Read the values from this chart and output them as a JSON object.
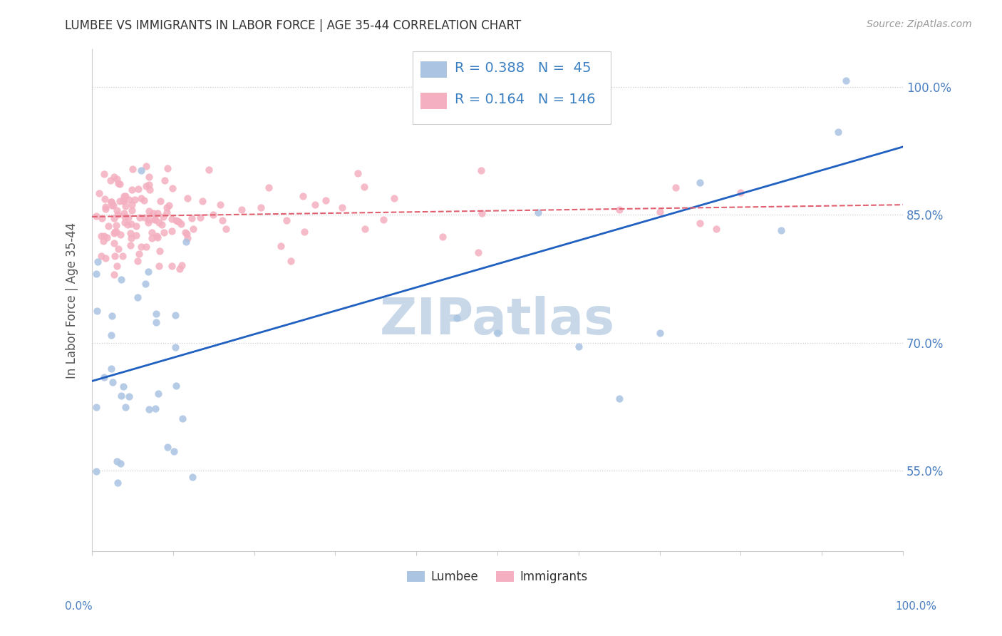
{
  "title": "LUMBEE VS IMMIGRANTS IN LABOR FORCE | AGE 35-44 CORRELATION CHART",
  "source": "Source: ZipAtlas.com",
  "ylabel": "In Labor Force | Age 35-44",
  "ytick_labels": [
    "55.0%",
    "70.0%",
    "85.0%",
    "100.0%"
  ],
  "ytick_values": [
    0.55,
    0.7,
    0.85,
    1.0
  ],
  "xmin": 0.0,
  "xmax": 1.0,
  "ymin": 0.455,
  "ymax": 1.045,
  "lumbee_R": 0.388,
  "lumbee_N": 45,
  "immigrants_R": 0.164,
  "immigrants_N": 146,
  "lumbee_color": "#aac4e2",
  "immigrants_color": "#f4afc0",
  "lumbee_line_color": "#2060c0",
  "immigrants_line_color": "#e06070",
  "legend_text_color": "#3a7fc1",
  "title_color": "#333333",
  "axis_label_color": "#4a7fc1",
  "background_color": "#ffffff",
  "watermark_color": "#c8d8e8",
  "lumbee_line_y0": 0.655,
  "lumbee_line_y1": 0.93,
  "immigrants_line_y0": 0.848,
  "immigrants_line_y1": 0.862
}
